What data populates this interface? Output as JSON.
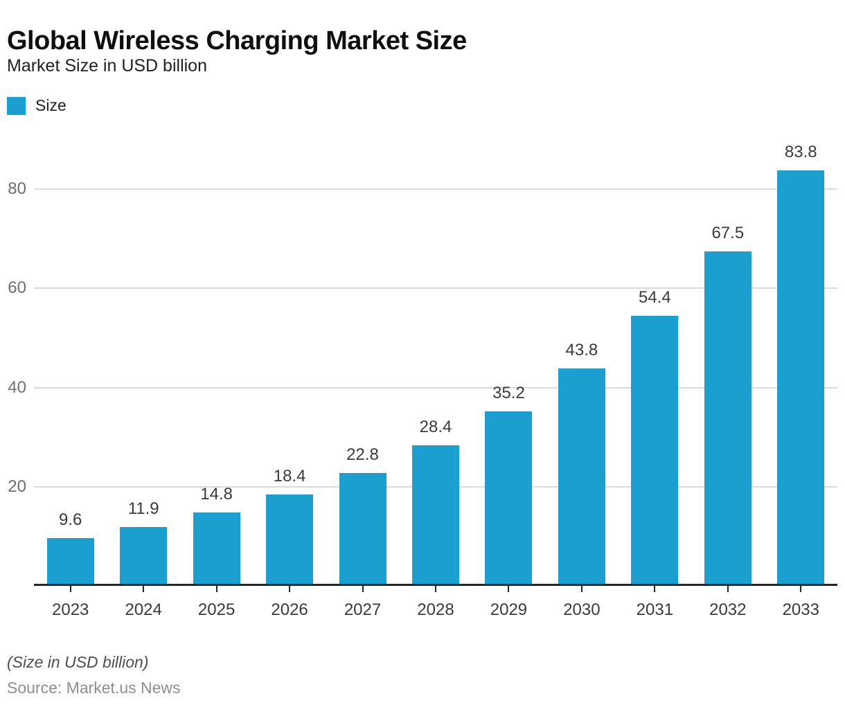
{
  "header": {
    "title": "Global Wireless Charging Market Size",
    "subtitle": "Market Size in USD billion"
  },
  "legend": {
    "label": "Size",
    "color": "#1A9FCE"
  },
  "footer": {
    "note": "(Size in USD billion)",
    "source": "Source: Market.us News"
  },
  "chart_data": {
    "type": "bar",
    "title": "Global Wireless Charging Market Size",
    "subtitle": "Market Size in USD billion",
    "categories": [
      "2023",
      "2024",
      "2025",
      "2026",
      "2027",
      "2028",
      "2029",
      "2030",
      "2031",
      "2032",
      "2033"
    ],
    "series": [
      {
        "name": "Size",
        "values": [
          9.6,
          11.9,
          14.8,
          18.4,
          22.8,
          28.4,
          35.2,
          43.8,
          54.4,
          67.5,
          83.8
        ]
      }
    ],
    "xlabel": "",
    "ylabel": "",
    "ylim": [
      0,
      85
    ],
    "yticks": [
      20,
      40,
      60,
      80
    ],
    "grid": true,
    "data_labels": true,
    "legend_position": "top-left",
    "bar_color": "#1A9FCE",
    "gridline_color": "#DBDBDE",
    "axis_color": "#262626"
  }
}
